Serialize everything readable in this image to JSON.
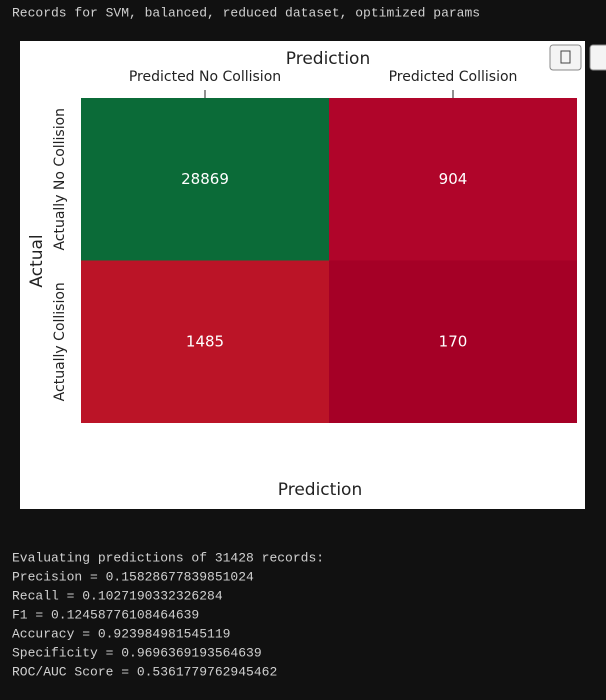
{
  "header": "Records for SVM, balanced, reduced dataset, optimized params",
  "chart_data": {
    "type": "heatmap",
    "title": "Prediction",
    "x_label": "Prediction",
    "y_label": "Actual",
    "x_categories": [
      "Predicted No Collision",
      "Predicted Collision"
    ],
    "y_categories": [
      "Actually No Collision",
      "Actually Collision"
    ],
    "values": [
      [
        28869,
        904
      ],
      [
        1485,
        170
      ]
    ],
    "colors": [
      [
        "#0b6b38",
        "#b0052a"
      ],
      [
        "#bb1427",
        "#a50026"
      ]
    ]
  },
  "output_lines": [
    "Evaluating predictions of 31428 records:",
    "Precision = 0.15828677839851024",
    "Recall = 0.1027190332326284",
    "F1 = 0.12458776108464639",
    "Accuracy = 0.923984981545119",
    "Specificity = 0.9696369193564639",
    "ROC/AUC Score = 0.5361779762945462"
  ]
}
